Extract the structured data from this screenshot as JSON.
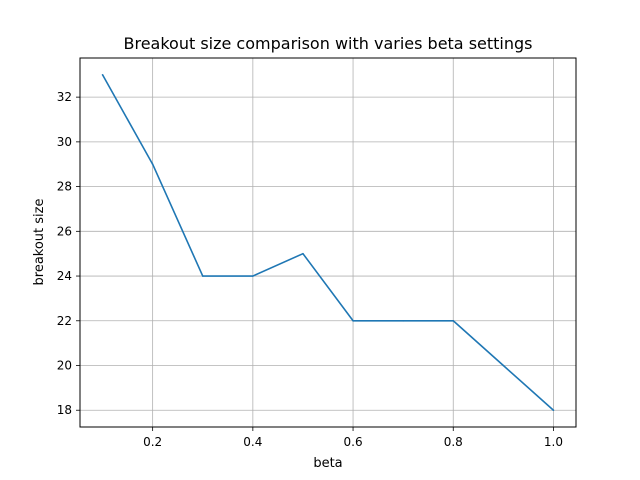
{
  "chart_data": {
    "type": "line",
    "title": "Breakout size comparison with varies beta settings",
    "xlabel": "beta",
    "ylabel": "breakout size",
    "xlim": [
      0.055,
      1.045
    ],
    "ylim": [
      17.25,
      33.75
    ],
    "grid": true,
    "x_ticks": [
      0.2,
      0.4,
      0.6,
      0.8,
      1.0
    ],
    "x_tick_labels": [
      "0.2",
      "0.4",
      "0.6",
      "0.8",
      "1.0"
    ],
    "y_ticks": [
      18,
      20,
      22,
      24,
      26,
      28,
      30,
      32
    ],
    "y_tick_labels": [
      "18",
      "20",
      "22",
      "24",
      "26",
      "28",
      "30",
      "32"
    ],
    "series": [
      {
        "x": [
          0.1,
          0.2,
          0.3,
          0.4,
          0.5,
          0.6,
          0.7,
          0.8,
          0.9,
          1.0
        ],
        "values": [
          33,
          29,
          24,
          24,
          25,
          22,
          22,
          22,
          20,
          18
        ],
        "color": "#1f77b4"
      }
    ]
  }
}
